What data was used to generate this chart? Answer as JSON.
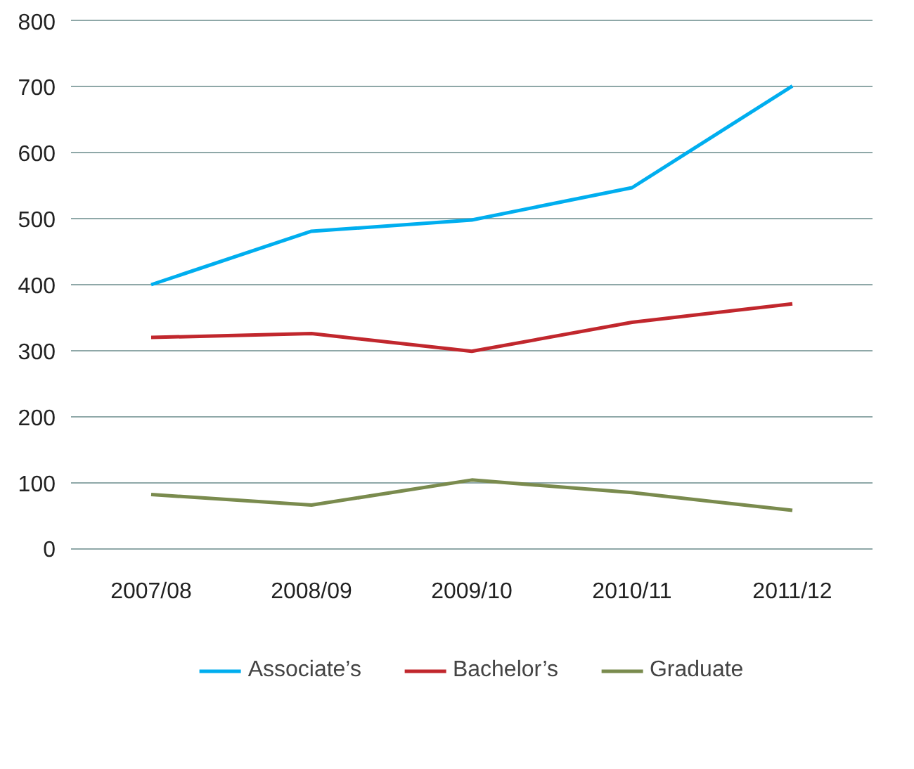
{
  "chart_data": {
    "type": "line",
    "categories": [
      "2007/08",
      "2008/09",
      "2009/10",
      "2010/11",
      "2011/12"
    ],
    "series": [
      {
        "name": "Associate’s",
        "color": "#00aeef",
        "values": [
          400,
          481,
          498,
          547,
          701
        ]
      },
      {
        "name": "Bachelor’s",
        "color": "#c1272d",
        "values": [
          320,
          326,
          299,
          343,
          371
        ]
      },
      {
        "name": "Graduate",
        "color": "#7a8b4e",
        "values": [
          82,
          66,
          104,
          85,
          58
        ]
      }
    ],
    "ylim": [
      0,
      800
    ],
    "yticks": [
      0,
      100,
      200,
      300,
      400,
      500,
      600,
      700,
      800
    ],
    "grid": "y",
    "legend": "bottom",
    "marker": "none",
    "line_style": "solid"
  }
}
